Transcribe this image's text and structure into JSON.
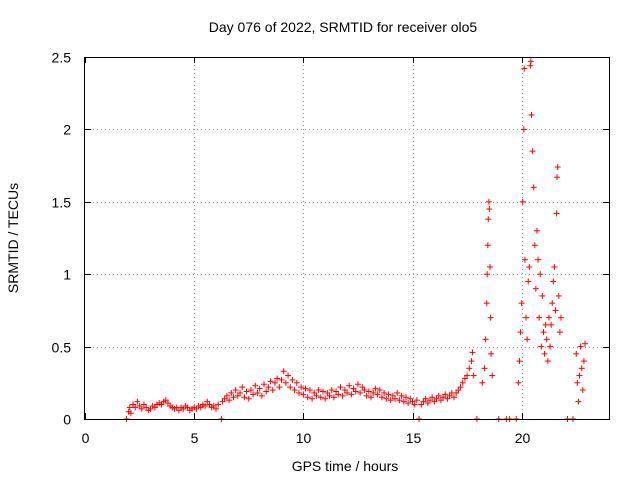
{
  "chart_data": {
    "type": "scatter",
    "title": "Day 076 of 2022, SRMTID for receiver olo5",
    "xlabel": "GPS time / hours",
    "ylabel": "SRMTID / TECUs",
    "xlim": [
      0,
      24
    ],
    "ylim": [
      0,
      2.5
    ],
    "xticks": [
      0,
      5,
      10,
      15,
      20
    ],
    "yticks": [
      0,
      0.5,
      1,
      1.5,
      2,
      2.5
    ],
    "ytick_labels": [
      "0",
      "0.5",
      "1",
      "1.5",
      "2",
      "2.5"
    ],
    "marker": "+",
    "grid": true,
    "series": [
      {
        "name": "SRMTID",
        "color": "#ff0000",
        "points": [
          [
            1.9,
            0.0
          ],
          [
            2.0,
            0.05
          ],
          [
            2.05,
            0.08
          ],
          [
            2.1,
            0.04
          ],
          [
            2.2,
            0.1
          ],
          [
            2.3,
            0.08
          ],
          [
            2.4,
            0.12
          ],
          [
            2.5,
            0.09
          ],
          [
            2.6,
            0.07
          ],
          [
            2.7,
            0.1
          ],
          [
            2.8,
            0.08
          ],
          [
            2.9,
            0.06
          ],
          [
            3.0,
            0.07
          ],
          [
            3.1,
            0.09
          ],
          [
            3.2,
            0.08
          ],
          [
            3.3,
            0.1
          ],
          [
            3.4,
            0.11
          ],
          [
            3.5,
            0.1
          ],
          [
            3.6,
            0.12
          ],
          [
            3.7,
            0.13
          ],
          [
            3.8,
            0.11
          ],
          [
            3.9,
            0.09
          ],
          [
            4.0,
            0.08
          ],
          [
            4.1,
            0.07
          ],
          [
            4.2,
            0.08
          ],
          [
            4.3,
            0.06
          ],
          [
            4.4,
            0.08
          ],
          [
            4.5,
            0.07
          ],
          [
            4.6,
            0.09
          ],
          [
            4.7,
            0.08
          ],
          [
            4.8,
            0.06
          ],
          [
            4.9,
            0.07
          ],
          [
            5.0,
            0.08
          ],
          [
            5.1,
            0.07
          ],
          [
            5.2,
            0.09
          ],
          [
            5.3,
            0.08
          ],
          [
            5.4,
            0.1
          ],
          [
            5.5,
            0.09
          ],
          [
            5.6,
            0.12
          ],
          [
            5.7,
            0.1
          ],
          [
            5.8,
            0.08
          ],
          [
            5.9,
            0.09
          ],
          [
            6.0,
            0.07
          ],
          [
            6.1,
            0.1
          ],
          [
            6.25,
            0.0
          ],
          [
            6.3,
            0.12
          ],
          [
            6.4,
            0.14
          ],
          [
            6.5,
            0.16
          ],
          [
            6.6,
            0.13
          ],
          [
            6.7,
            0.18
          ],
          [
            6.8,
            0.15
          ],
          [
            6.9,
            0.2
          ],
          [
            7.0,
            0.16
          ],
          [
            7.1,
            0.18
          ],
          [
            7.2,
            0.22
          ],
          [
            7.3,
            0.15
          ],
          [
            7.4,
            0.19
          ],
          [
            7.5,
            0.14
          ],
          [
            7.6,
            0.2
          ],
          [
            7.7,
            0.17
          ],
          [
            7.8,
            0.23
          ],
          [
            7.9,
            0.18
          ],
          [
            8.0,
            0.21
          ],
          [
            8.1,
            0.16
          ],
          [
            8.2,
            0.24
          ],
          [
            8.3,
            0.19
          ],
          [
            8.4,
            0.22
          ],
          [
            8.5,
            0.26
          ],
          [
            8.6,
            0.2
          ],
          [
            8.7,
            0.25
          ],
          [
            8.8,
            0.28
          ],
          [
            8.9,
            0.22
          ],
          [
            9.0,
            0.27
          ],
          [
            9.1,
            0.33
          ],
          [
            9.2,
            0.25
          ],
          [
            9.3,
            0.3
          ],
          [
            9.4,
            0.22
          ],
          [
            9.5,
            0.27
          ],
          [
            9.6,
            0.2
          ],
          [
            9.7,
            0.25
          ],
          [
            9.8,
            0.18
          ],
          [
            9.9,
            0.22
          ],
          [
            10.0,
            0.17
          ],
          [
            10.1,
            0.21
          ],
          [
            10.2,
            0.15
          ],
          [
            10.3,
            0.2
          ],
          [
            10.4,
            0.14
          ],
          [
            10.5,
            0.18
          ],
          [
            10.6,
            0.16
          ],
          [
            10.7,
            0.2
          ],
          [
            10.8,
            0.15
          ],
          [
            10.9,
            0.19
          ],
          [
            11.0,
            0.14
          ],
          [
            11.1,
            0.18
          ],
          [
            11.2,
            0.16
          ],
          [
            11.3,
            0.2
          ],
          [
            11.4,
            0.15
          ],
          [
            11.5,
            0.19
          ],
          [
            11.6,
            0.17
          ],
          [
            11.7,
            0.22
          ],
          [
            11.8,
            0.16
          ],
          [
            11.9,
            0.2
          ],
          [
            12.0,
            0.18
          ],
          [
            12.1,
            0.23
          ],
          [
            12.2,
            0.17
          ],
          [
            12.3,
            0.21
          ],
          [
            12.4,
            0.19
          ],
          [
            12.5,
            0.24
          ],
          [
            12.6,
            0.18
          ],
          [
            12.7,
            0.22
          ],
          [
            12.8,
            0.2
          ],
          [
            12.9,
            0.16
          ],
          [
            13.0,
            0.19
          ],
          [
            13.1,
            0.15
          ],
          [
            13.2,
            0.18
          ],
          [
            13.3,
            0.21
          ],
          [
            13.4,
            0.17
          ],
          [
            13.5,
            0.2
          ],
          [
            13.6,
            0.15
          ],
          [
            13.7,
            0.18
          ],
          [
            13.8,
            0.14
          ],
          [
            13.9,
            0.17
          ],
          [
            14.0,
            0.13
          ],
          [
            14.1,
            0.16
          ],
          [
            14.2,
            0.14
          ],
          [
            14.3,
            0.18
          ],
          [
            14.4,
            0.13
          ],
          [
            14.5,
            0.16
          ],
          [
            14.6,
            0.12
          ],
          [
            14.7,
            0.15
          ],
          [
            14.8,
            0.11
          ],
          [
            14.9,
            0.14
          ],
          [
            15.0,
            0.12
          ],
          [
            15.1,
            0.1
          ],
          [
            15.2,
            0.13
          ],
          [
            15.3,
            0.0
          ],
          [
            15.4,
            0.1
          ],
          [
            15.5,
            0.12
          ],
          [
            15.6,
            0.14
          ],
          [
            15.7,
            0.11
          ],
          [
            15.8,
            0.13
          ],
          [
            15.9,
            0.15
          ],
          [
            16.0,
            0.12
          ],
          [
            16.1,
            0.14
          ],
          [
            16.2,
            0.16
          ],
          [
            16.3,
            0.13
          ],
          [
            16.4,
            0.15
          ],
          [
            16.5,
            0.17
          ],
          [
            16.6,
            0.14
          ],
          [
            16.7,
            0.16
          ],
          [
            16.8,
            0.18
          ],
          [
            16.9,
            0.15
          ],
          [
            17.0,
            0.18
          ],
          [
            17.1,
            0.2
          ],
          [
            17.2,
            0.22
          ],
          [
            17.3,
            0.25
          ],
          [
            17.4,
            0.28
          ],
          [
            17.5,
            0.3
          ],
          [
            17.6,
            0.35
          ],
          [
            17.7,
            0.4
          ],
          [
            17.75,
            0.46
          ],
          [
            17.8,
            0.3
          ],
          [
            17.95,
            0.0
          ],
          [
            18.2,
            0.25
          ],
          [
            18.3,
            0.35
          ],
          [
            18.35,
            0.55
          ],
          [
            18.4,
            0.8
          ],
          [
            18.42,
            1.0
          ],
          [
            18.45,
            1.2
          ],
          [
            18.47,
            1.38
          ],
          [
            18.5,
            1.5
          ],
          [
            18.52,
            1.45
          ],
          [
            18.55,
            1.05
          ],
          [
            18.58,
            0.7
          ],
          [
            18.6,
            0.45
          ],
          [
            18.65,
            0.3
          ],
          [
            18.95,
            0.0
          ],
          [
            19.3,
            0.0
          ],
          [
            19.45,
            0.0
          ],
          [
            19.75,
            0.0
          ],
          [
            19.85,
            0.25
          ],
          [
            19.9,
            0.4
          ],
          [
            19.95,
            0.6
          ],
          [
            20.0,
            0.8
          ],
          [
            20.05,
            1.5
          ],
          [
            20.1,
            2.0
          ],
          [
            20.12,
            2.42
          ],
          [
            20.15,
            1.1
          ],
          [
            20.2,
            0.7
          ],
          [
            20.25,
            0.55
          ],
          [
            20.3,
            0.95
          ],
          [
            20.35,
            1.05
          ],
          [
            20.4,
            2.44
          ],
          [
            20.42,
            2.47
          ],
          [
            20.45,
            2.1
          ],
          [
            20.5,
            1.85
          ],
          [
            20.55,
            1.6
          ],
          [
            20.6,
            1.2
          ],
          [
            20.65,
            0.9
          ],
          [
            20.7,
            1.3
          ],
          [
            20.75,
            1.1
          ],
          [
            20.8,
            0.7
          ],
          [
            20.85,
            1.0
          ],
          [
            20.9,
            0.5
          ],
          [
            20.95,
            0.85
          ],
          [
            21.0,
            0.6
          ],
          [
            21.05,
            0.45
          ],
          [
            21.1,
            0.65
          ],
          [
            21.15,
            0.55
          ],
          [
            21.2,
            0.4
          ],
          [
            21.25,
            0.7
          ],
          [
            21.3,
            0.5
          ],
          [
            21.35,
            0.65
          ],
          [
            21.4,
            0.8
          ],
          [
            21.45,
            0.95
          ],
          [
            21.5,
            1.05
          ],
          [
            21.55,
            0.75
          ],
          [
            21.6,
            1.42
          ],
          [
            21.62,
            1.67
          ],
          [
            21.65,
            1.74
          ],
          [
            21.7,
            0.85
          ],
          [
            21.75,
            0.6
          ],
          [
            21.8,
            0.7
          ],
          [
            22.1,
            0.0
          ],
          [
            22.35,
            0.0
          ],
          [
            22.5,
            0.45
          ],
          [
            22.55,
            0.25
          ],
          [
            22.6,
            0.12
          ],
          [
            22.65,
            0.3
          ],
          [
            22.7,
            0.5
          ],
          [
            22.75,
            0.35
          ],
          [
            22.8,
            0.2
          ],
          [
            22.85,
            0.4
          ],
          [
            22.9,
            0.52
          ]
        ]
      }
    ]
  }
}
